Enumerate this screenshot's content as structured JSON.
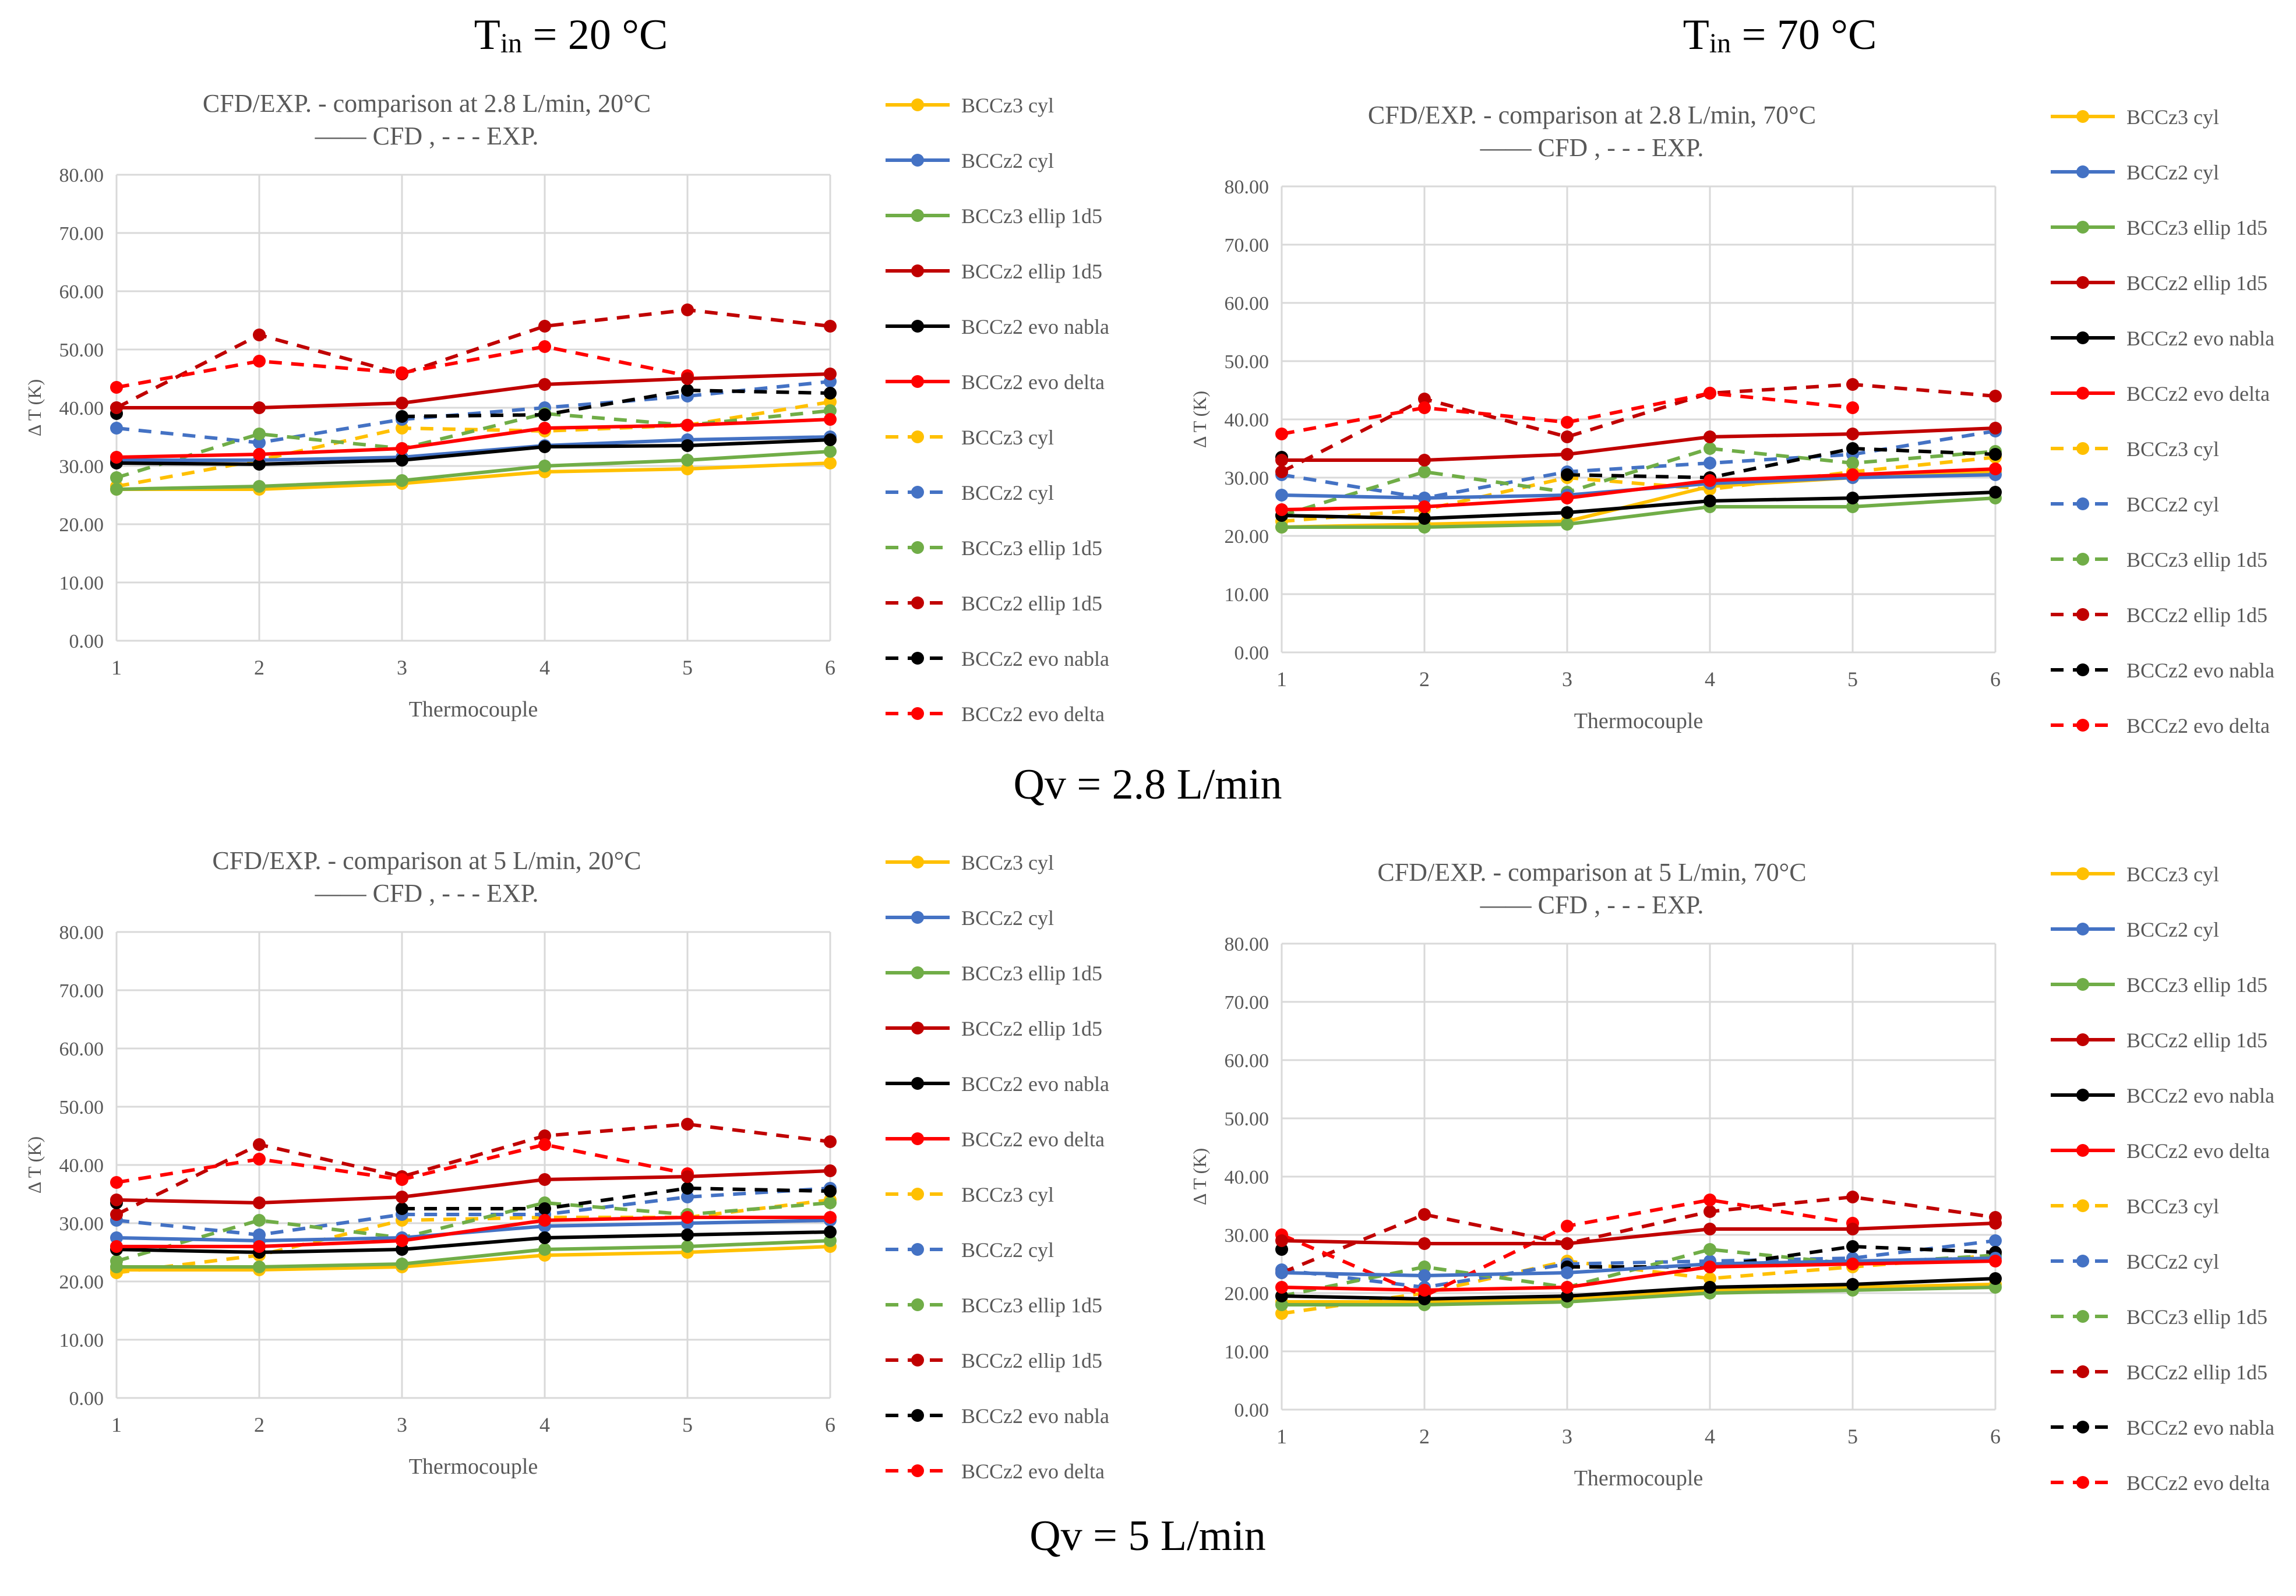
{
  "headers": {
    "left_prefix": "T",
    "left_sub": "in",
    "left_suffix": " = 20 °C",
    "right_prefix": "T",
    "right_sub": "in",
    "right_suffix": " = 70 °C"
  },
  "section_labels": {
    "top": "Qv = 2.8 L/min",
    "bottom": "Qv = 5 L/min"
  },
  "legend_labels": [
    "BCCz3 cyl",
    "BCCz2 cyl",
    "BCCz3 ellip 1d5",
    "BCCz2 ellip 1d5",
    "BCCz2 evo nabla",
    "BCCz2 evo delta",
    "BCCz3 cyl",
    "BCCz2 cyl",
    "BCCz3 ellip 1d5",
    "BCCz2 ellip 1d5",
    "BCCz2 evo nabla",
    "BCCz2 evo delta"
  ],
  "colors": {
    "BCCz3 cyl": "#ffc000",
    "BCCz2 cyl": "#4472c4",
    "BCCz3 ellip 1d5": "#70ad47",
    "BCCz2 ellip 1d5": "#c00000",
    "BCCz2 evo nabla": "#000000",
    "BCCz2 evo delta": "#ff0000",
    "grid": "#d9d9d9",
    "axis_text": "#595959"
  },
  "chart_data": [
    {
      "type": "line",
      "title": "CFD/EXP. - comparison at 2.8 L/min, 20°C",
      "subtitle": "—— CFD , - - - EXP.",
      "xlabel": "Thermocouple",
      "ylabel": "Δ T (K)",
      "x": [
        1,
        2,
        3,
        4,
        5,
        6
      ],
      "x_tick_labels": [
        "1",
        "2",
        "3",
        "4",
        "5",
        "6"
      ],
      "y_tick_labels": [
        "0.00",
        "10.00",
        "20.00",
        "30.00",
        "40.00",
        "50.00",
        "60.00",
        "70.00",
        "80.00"
      ],
      "ylim": [
        0,
        80
      ],
      "grid": true,
      "legend_position": "right",
      "series": [
        {
          "name": "BCCz3 cyl",
          "kind": "CFD",
          "values": [
            26.0,
            26.0,
            27.0,
            29.0,
            29.5,
            30.5
          ]
        },
        {
          "name": "BCCz2 cyl",
          "kind": "CFD",
          "values": [
            31.0,
            31.0,
            31.5,
            33.5,
            34.5,
            35.0
          ]
        },
        {
          "name": "BCCz3 ellip 1d5",
          "kind": "CFD",
          "values": [
            26.0,
            26.5,
            27.5,
            30.0,
            31.0,
            32.5
          ]
        },
        {
          "name": "BCCz2 ellip 1d5",
          "kind": "CFD",
          "values": [
            40.0,
            40.0,
            40.8,
            44.0,
            45.0,
            45.8
          ]
        },
        {
          "name": "BCCz2 evo nabla",
          "kind": "CFD",
          "values": [
            30.5,
            30.3,
            31.0,
            33.3,
            33.5,
            34.5
          ]
        },
        {
          "name": "BCCz2 evo delta",
          "kind": "CFD",
          "values": [
            31.5,
            32.0,
            33.0,
            36.5,
            37.0,
            38.0
          ]
        },
        {
          "name": "BCCz3 cyl",
          "kind": "EXP",
          "values": [
            26.5,
            31.0,
            36.5,
            36.0,
            37.0,
            41.0
          ]
        },
        {
          "name": "BCCz2 cyl",
          "kind": "EXP",
          "values": [
            36.5,
            34.0,
            38.0,
            40.0,
            42.0,
            44.5
          ]
        },
        {
          "name": "BCCz3 ellip 1d5",
          "kind": "EXP",
          "values": [
            28.0,
            35.5,
            33.0,
            39.0,
            37.0,
            39.5
          ]
        },
        {
          "name": "BCCz2 ellip 1d5",
          "kind": "EXP",
          "values": [
            40.0,
            52.5,
            45.8,
            54.0,
            56.8,
            54.0
          ]
        },
        {
          "name": "BCCz2 evo nabla",
          "kind": "EXP",
          "values": [
            39.0,
            null,
            38.5,
            38.8,
            43.0,
            42.5
          ]
        },
        {
          "name": "BCCz2 evo delta",
          "kind": "EXP",
          "values": [
            43.5,
            48.0,
            46.0,
            50.5,
            45.5,
            null
          ]
        }
      ]
    },
    {
      "type": "line",
      "title": "CFD/EXP. - comparison at 2.8 L/min, 70°C",
      "subtitle": "—— CFD , - - - EXP.",
      "xlabel": "Thermocouple",
      "ylabel": "Δ T (K)",
      "x": [
        1,
        2,
        3,
        4,
        5,
        6
      ],
      "x_tick_labels": [
        "1",
        "2",
        "3",
        "4",
        "5",
        "6"
      ],
      "y_tick_labels": [
        "0.00",
        "10.00",
        "20.00",
        "30.00",
        "40.00",
        "50.00",
        "60.00",
        "70.00",
        "80.00"
      ],
      "ylim": [
        0,
        80
      ],
      "grid": true,
      "legend_position": "right",
      "series": [
        {
          "name": "BCCz3 cyl",
          "kind": "CFD",
          "values": [
            21.5,
            22.0,
            22.5,
            28.5,
            30.0,
            31.0
          ]
        },
        {
          "name": "BCCz2 cyl",
          "kind": "CFD",
          "values": [
            27.0,
            26.5,
            27.0,
            29.0,
            30.0,
            30.5
          ]
        },
        {
          "name": "BCCz3 ellip 1d5",
          "kind": "CFD",
          "values": [
            21.5,
            21.5,
            22.0,
            25.0,
            25.0,
            26.5
          ]
        },
        {
          "name": "BCCz2 ellip 1d5",
          "kind": "CFD",
          "values": [
            33.0,
            33.0,
            34.0,
            37.0,
            37.5,
            38.5
          ]
        },
        {
          "name": "BCCz2 evo nabla",
          "kind": "CFD",
          "values": [
            23.5,
            23.0,
            24.0,
            26.0,
            26.5,
            27.5
          ]
        },
        {
          "name": "BCCz2 evo delta",
          "kind": "CFD",
          "values": [
            24.5,
            25.0,
            26.5,
            29.5,
            30.5,
            31.5
          ]
        },
        {
          "name": "BCCz3 cyl",
          "kind": "EXP",
          "values": [
            22.5,
            24.5,
            30.0,
            28.0,
            31.0,
            33.5
          ]
        },
        {
          "name": "BCCz2 cyl",
          "kind": "EXP",
          "values": [
            30.5,
            26.5,
            31.0,
            32.5,
            34.0,
            38.0
          ]
        },
        {
          "name": "BCCz3 ellip 1d5",
          "kind": "EXP",
          "values": [
            23.5,
            31.0,
            27.5,
            35.0,
            32.5,
            34.5
          ]
        },
        {
          "name": "BCCz2 ellip 1d5",
          "kind": "EXP",
          "values": [
            31.0,
            43.5,
            37.0,
            44.5,
            46.0,
            44.0
          ]
        },
        {
          "name": "BCCz2 evo nabla",
          "kind": "EXP",
          "values": [
            33.5,
            null,
            30.5,
            30.0,
            35.0,
            34.0
          ]
        },
        {
          "name": "BCCz2 evo delta",
          "kind": "EXP",
          "values": [
            37.5,
            42.0,
            39.5,
            44.5,
            42.0,
            null
          ]
        }
      ]
    },
    {
      "type": "line",
      "title": "CFD/EXP. - comparison at 5 L/min, 20°C",
      "subtitle": "—— CFD , - - - EXP.",
      "xlabel": "Thermocouple",
      "ylabel": "Δ T (K)",
      "x": [
        1,
        2,
        3,
        4,
        5,
        6
      ],
      "x_tick_labels": [
        "1",
        "2",
        "3",
        "4",
        "5",
        "6"
      ],
      "y_tick_labels": [
        "0.00",
        "10.00",
        "20.00",
        "30.00",
        "40.00",
        "50.00",
        "60.00",
        "70.00",
        "80.00"
      ],
      "ylim": [
        0,
        80
      ],
      "grid": true,
      "legend_position": "right",
      "series": [
        {
          "name": "BCCz3 cyl",
          "kind": "CFD",
          "values": [
            22.0,
            22.0,
            22.5,
            24.5,
            25.0,
            26.0
          ]
        },
        {
          "name": "BCCz2 cyl",
          "kind": "CFD",
          "values": [
            27.5,
            27.0,
            27.5,
            29.5,
            30.0,
            30.5
          ]
        },
        {
          "name": "BCCz3 ellip 1d5",
          "kind": "CFD",
          "values": [
            22.5,
            22.5,
            23.0,
            25.5,
            26.0,
            27.0
          ]
        },
        {
          "name": "BCCz2 ellip 1d5",
          "kind": "CFD",
          "values": [
            34.0,
            33.5,
            34.5,
            37.5,
            38.0,
            39.0
          ]
        },
        {
          "name": "BCCz2 evo nabla",
          "kind": "CFD",
          "values": [
            25.5,
            25.0,
            25.5,
            27.5,
            28.0,
            28.5
          ]
        },
        {
          "name": "BCCz2 evo delta",
          "kind": "CFD",
          "values": [
            26.0,
            26.0,
            27.0,
            30.5,
            31.0,
            31.0
          ]
        },
        {
          "name": "BCCz3 cyl",
          "kind": "EXP",
          "values": [
            21.5,
            24.5,
            30.5,
            31.0,
            31.0,
            34.0
          ]
        },
        {
          "name": "BCCz2 cyl",
          "kind": "EXP",
          "values": [
            30.5,
            28.0,
            31.5,
            31.5,
            34.5,
            36.0
          ]
        },
        {
          "name": "BCCz3 ellip 1d5",
          "kind": "EXP",
          "values": [
            23.5,
            30.5,
            27.5,
            33.5,
            31.5,
            33.5
          ]
        },
        {
          "name": "BCCz2 ellip 1d5",
          "kind": "EXP",
          "values": [
            31.5,
            43.5,
            38.0,
            45.0,
            47.0,
            44.0
          ]
        },
        {
          "name": "BCCz2 evo nabla",
          "kind": "EXP",
          "values": [
            33.5,
            null,
            32.5,
            32.5,
            36.0,
            35.5
          ]
        },
        {
          "name": "BCCz2 evo delta",
          "kind": "EXP",
          "values": [
            37.0,
            41.0,
            37.5,
            43.5,
            38.5,
            null
          ]
        }
      ]
    },
    {
      "type": "line",
      "title": "CFD/EXP. - comparison at 5 L/min, 70°C",
      "subtitle": "—— CFD , - - - EXP.",
      "xlabel": "Thermocouple",
      "ylabel": "Δ T (K)",
      "x": [
        1,
        2,
        3,
        4,
        5,
        6
      ],
      "x_tick_labels": [
        "1",
        "2",
        "3",
        "4",
        "5",
        "6"
      ],
      "y_tick_labels": [
        "0.00",
        "10.00",
        "20.00",
        "30.00",
        "40.00",
        "50.00",
        "60.00",
        "70.00",
        "80.00"
      ],
      "ylim": [
        0,
        80
      ],
      "grid": true,
      "legend_position": "right",
      "series": [
        {
          "name": "BCCz3 cyl",
          "kind": "CFD",
          "values": [
            18.5,
            18.5,
            19.0,
            20.5,
            21.0,
            21.5
          ]
        },
        {
          "name": "BCCz2 cyl",
          "kind": "CFD",
          "values": [
            23.5,
            23.0,
            23.5,
            25.0,
            25.5,
            26.0
          ]
        },
        {
          "name": "BCCz3 ellip 1d5",
          "kind": "CFD",
          "values": [
            18.0,
            18.0,
            18.5,
            20.0,
            20.5,
            21.0
          ]
        },
        {
          "name": "BCCz2 ellip 1d5",
          "kind": "CFD",
          "values": [
            29.0,
            28.5,
            28.5,
            31.0,
            31.0,
            32.0
          ]
        },
        {
          "name": "BCCz2 evo nabla",
          "kind": "CFD",
          "values": [
            19.5,
            19.0,
            19.5,
            21.0,
            21.5,
            22.5
          ]
        },
        {
          "name": "BCCz2 evo delta",
          "kind": "CFD",
          "values": [
            21.0,
            20.5,
            21.0,
            24.5,
            25.0,
            25.5
          ]
        },
        {
          "name": "BCCz3 cyl",
          "kind": "EXP",
          "values": [
            16.5,
            20.0,
            25.5,
            22.5,
            24.5,
            26.5
          ]
        },
        {
          "name": "BCCz2 cyl",
          "kind": "EXP",
          "values": [
            24.0,
            21.0,
            25.0,
            25.5,
            26.0,
            29.0
          ]
        },
        {
          "name": "BCCz3 ellip 1d5",
          "kind": "EXP",
          "values": [
            19.5,
            24.5,
            21.0,
            27.5,
            25.0,
            26.5
          ]
        },
        {
          "name": "BCCz2 ellip 1d5",
          "kind": "EXP",
          "values": [
            23.5,
            33.5,
            28.5,
            34.0,
            36.5,
            33.0
          ]
        },
        {
          "name": "BCCz2 evo nabla",
          "kind": "EXP",
          "values": [
            27.5,
            null,
            24.5,
            24.5,
            28.0,
            27.0
          ]
        },
        {
          "name": "BCCz2 evo delta",
          "kind": "EXP",
          "values": [
            30.0,
            19.5,
            31.5,
            36.0,
            32.0,
            null
          ]
        }
      ]
    }
  ]
}
